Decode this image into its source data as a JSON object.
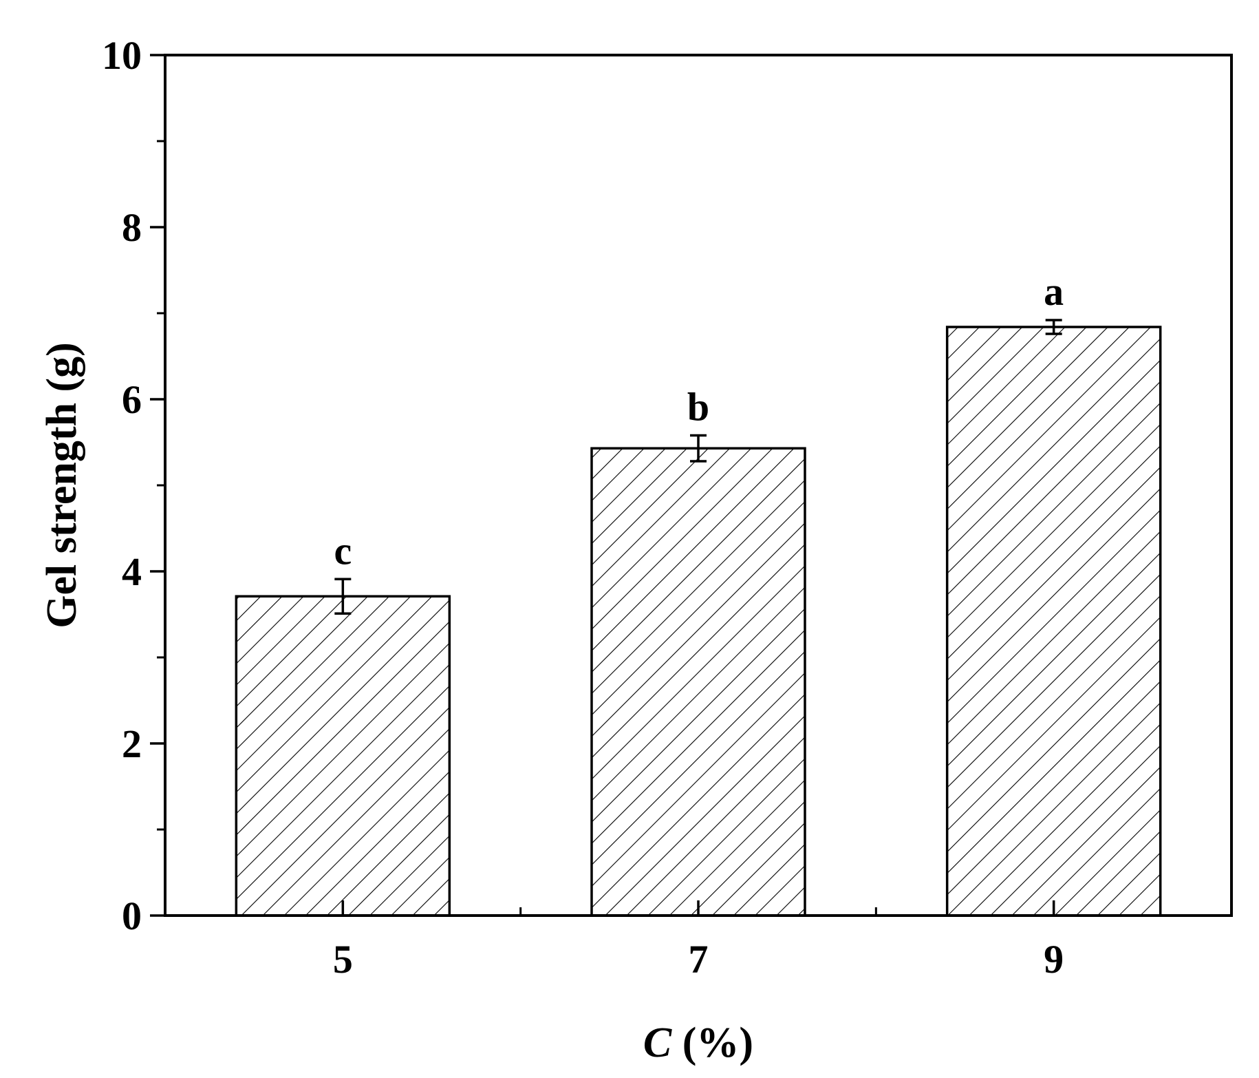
{
  "chart_data": {
    "type": "bar",
    "categories": [
      "5",
      "7",
      "9"
    ],
    "values": [
      3.71,
      5.43,
      6.84
    ],
    "errors": [
      0.2,
      0.15,
      0.08
    ],
    "significance": [
      "c",
      "b",
      "a"
    ],
    "xlabel": {
      "var": "C",
      "unit": " (%)"
    },
    "ylabel": "Gel strength (g)",
    "ylim": [
      0,
      10
    ],
    "y_ticks": [
      "0",
      "2",
      "4",
      "6",
      "8",
      "10"
    ],
    "y_minor_step": 1,
    "bar_fill": "hatched",
    "bar_color": "#ffffff",
    "line_color": "#000000",
    "grid": false,
    "legend": "none"
  }
}
